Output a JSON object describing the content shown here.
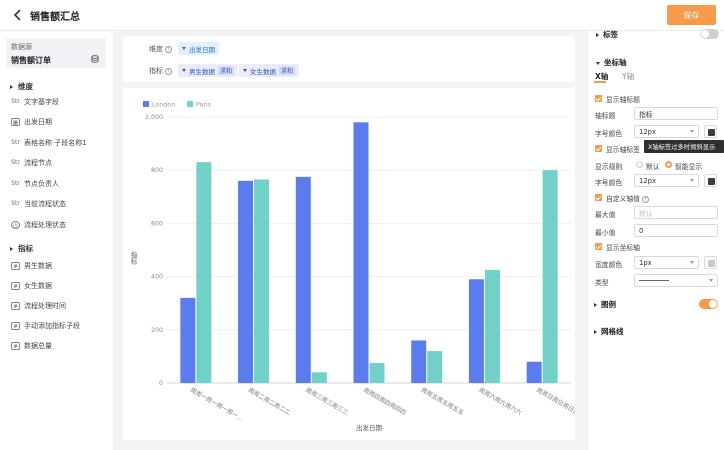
{
  "header": {
    "title": "销售额汇总",
    "save_label": "保存"
  },
  "datasource": {
    "label": "数据源",
    "name": "销售额订单"
  },
  "sidebar": {
    "dimension_title": "维度",
    "dimensions": [
      {
        "icon": "Str",
        "label": "文字基字段"
      },
      {
        "icon": "date",
        "label": "出发日期"
      },
      {
        "icon": "Str",
        "label": "表格名称·子段名称1"
      },
      {
        "icon": "Str",
        "label": "流程节点"
      },
      {
        "icon": "Str",
        "label": "节点负责人"
      },
      {
        "icon": "Str",
        "label": "当前流程状态"
      },
      {
        "icon": "clock",
        "label": "流程处理状态"
      }
    ],
    "metric_title": "指标",
    "metrics": [
      {
        "icon": "num",
        "label": "男生数据"
      },
      {
        "icon": "num",
        "label": "女生数据"
      },
      {
        "icon": "num",
        "label": "流程处理时间"
      },
      {
        "icon": "num",
        "label": "手动添加指标子段"
      },
      {
        "icon": "num",
        "label": "数据总量"
      }
    ]
  },
  "config": {
    "dimension_label": "维度",
    "dimension_tag": "出发日期",
    "metric_label": "指标",
    "metric_tags": [
      {
        "name": "男生数据",
        "agg": "求和"
      },
      {
        "name": "女生数据",
        "agg": "求和"
      }
    ]
  },
  "chart_data": {
    "type": "bar",
    "categories": [
      "周周一周一周一周一…",
      "周周二周二周二二",
      "周周三周三周三三",
      "周周四周四周四四",
      "周周五周五周五五",
      "周周六周六周六六",
      "周周日周日周日日"
    ],
    "series": [
      {
        "name": "London",
        "color": "#5b7cef",
        "values": [
          320,
          760,
          775,
          980,
          160,
          390,
          80
        ]
      },
      {
        "name": "Paris",
        "color": "#6fd1c8",
        "values": [
          830,
          765,
          40,
          75,
          120,
          425,
          800
        ]
      }
    ],
    "ylim": [
      0,
      1000
    ],
    "yticks": [
      "0",
      "200",
      "400",
      "600",
      "800",
      "1,000"
    ],
    "xlabel": "出发日期",
    "ylabel": "指标",
    "legend": "top-left",
    "grid": true
  },
  "settings": {
    "label_section": "标签",
    "axis_section": "坐标轴",
    "x_tab": "X轴",
    "y_tab": "Y轴",
    "show_axis_title": "显示轴标题",
    "axis_title_label": "轴标题",
    "axis_title_value": "指标",
    "font_color_label": "字号颜色",
    "font_size_value": "12px",
    "show_axis_label": "显示轴标签",
    "tooltip": "X轴标签过多时倾斜显示",
    "display_rule_label": "显示规则",
    "rule_default": "默认",
    "rule_smart": "智能显示",
    "font_color_label2": "字号颜色",
    "font_size_value2": "12px",
    "custom_axis": "自定义轴值",
    "max_label": "最大值",
    "max_placeholder": "默认",
    "min_label": "最小值",
    "min_value": "0",
    "show_axis_line": "显示坐标轴",
    "width_color_label": "宽度颜色",
    "width_value": "1px",
    "type_label": "类型",
    "legend_section": "图例",
    "grid_section": "网格线",
    "accent": "#f79a4a",
    "swatch_dark": "#3c3c3c",
    "swatch_gray": "#c8c8c8"
  }
}
